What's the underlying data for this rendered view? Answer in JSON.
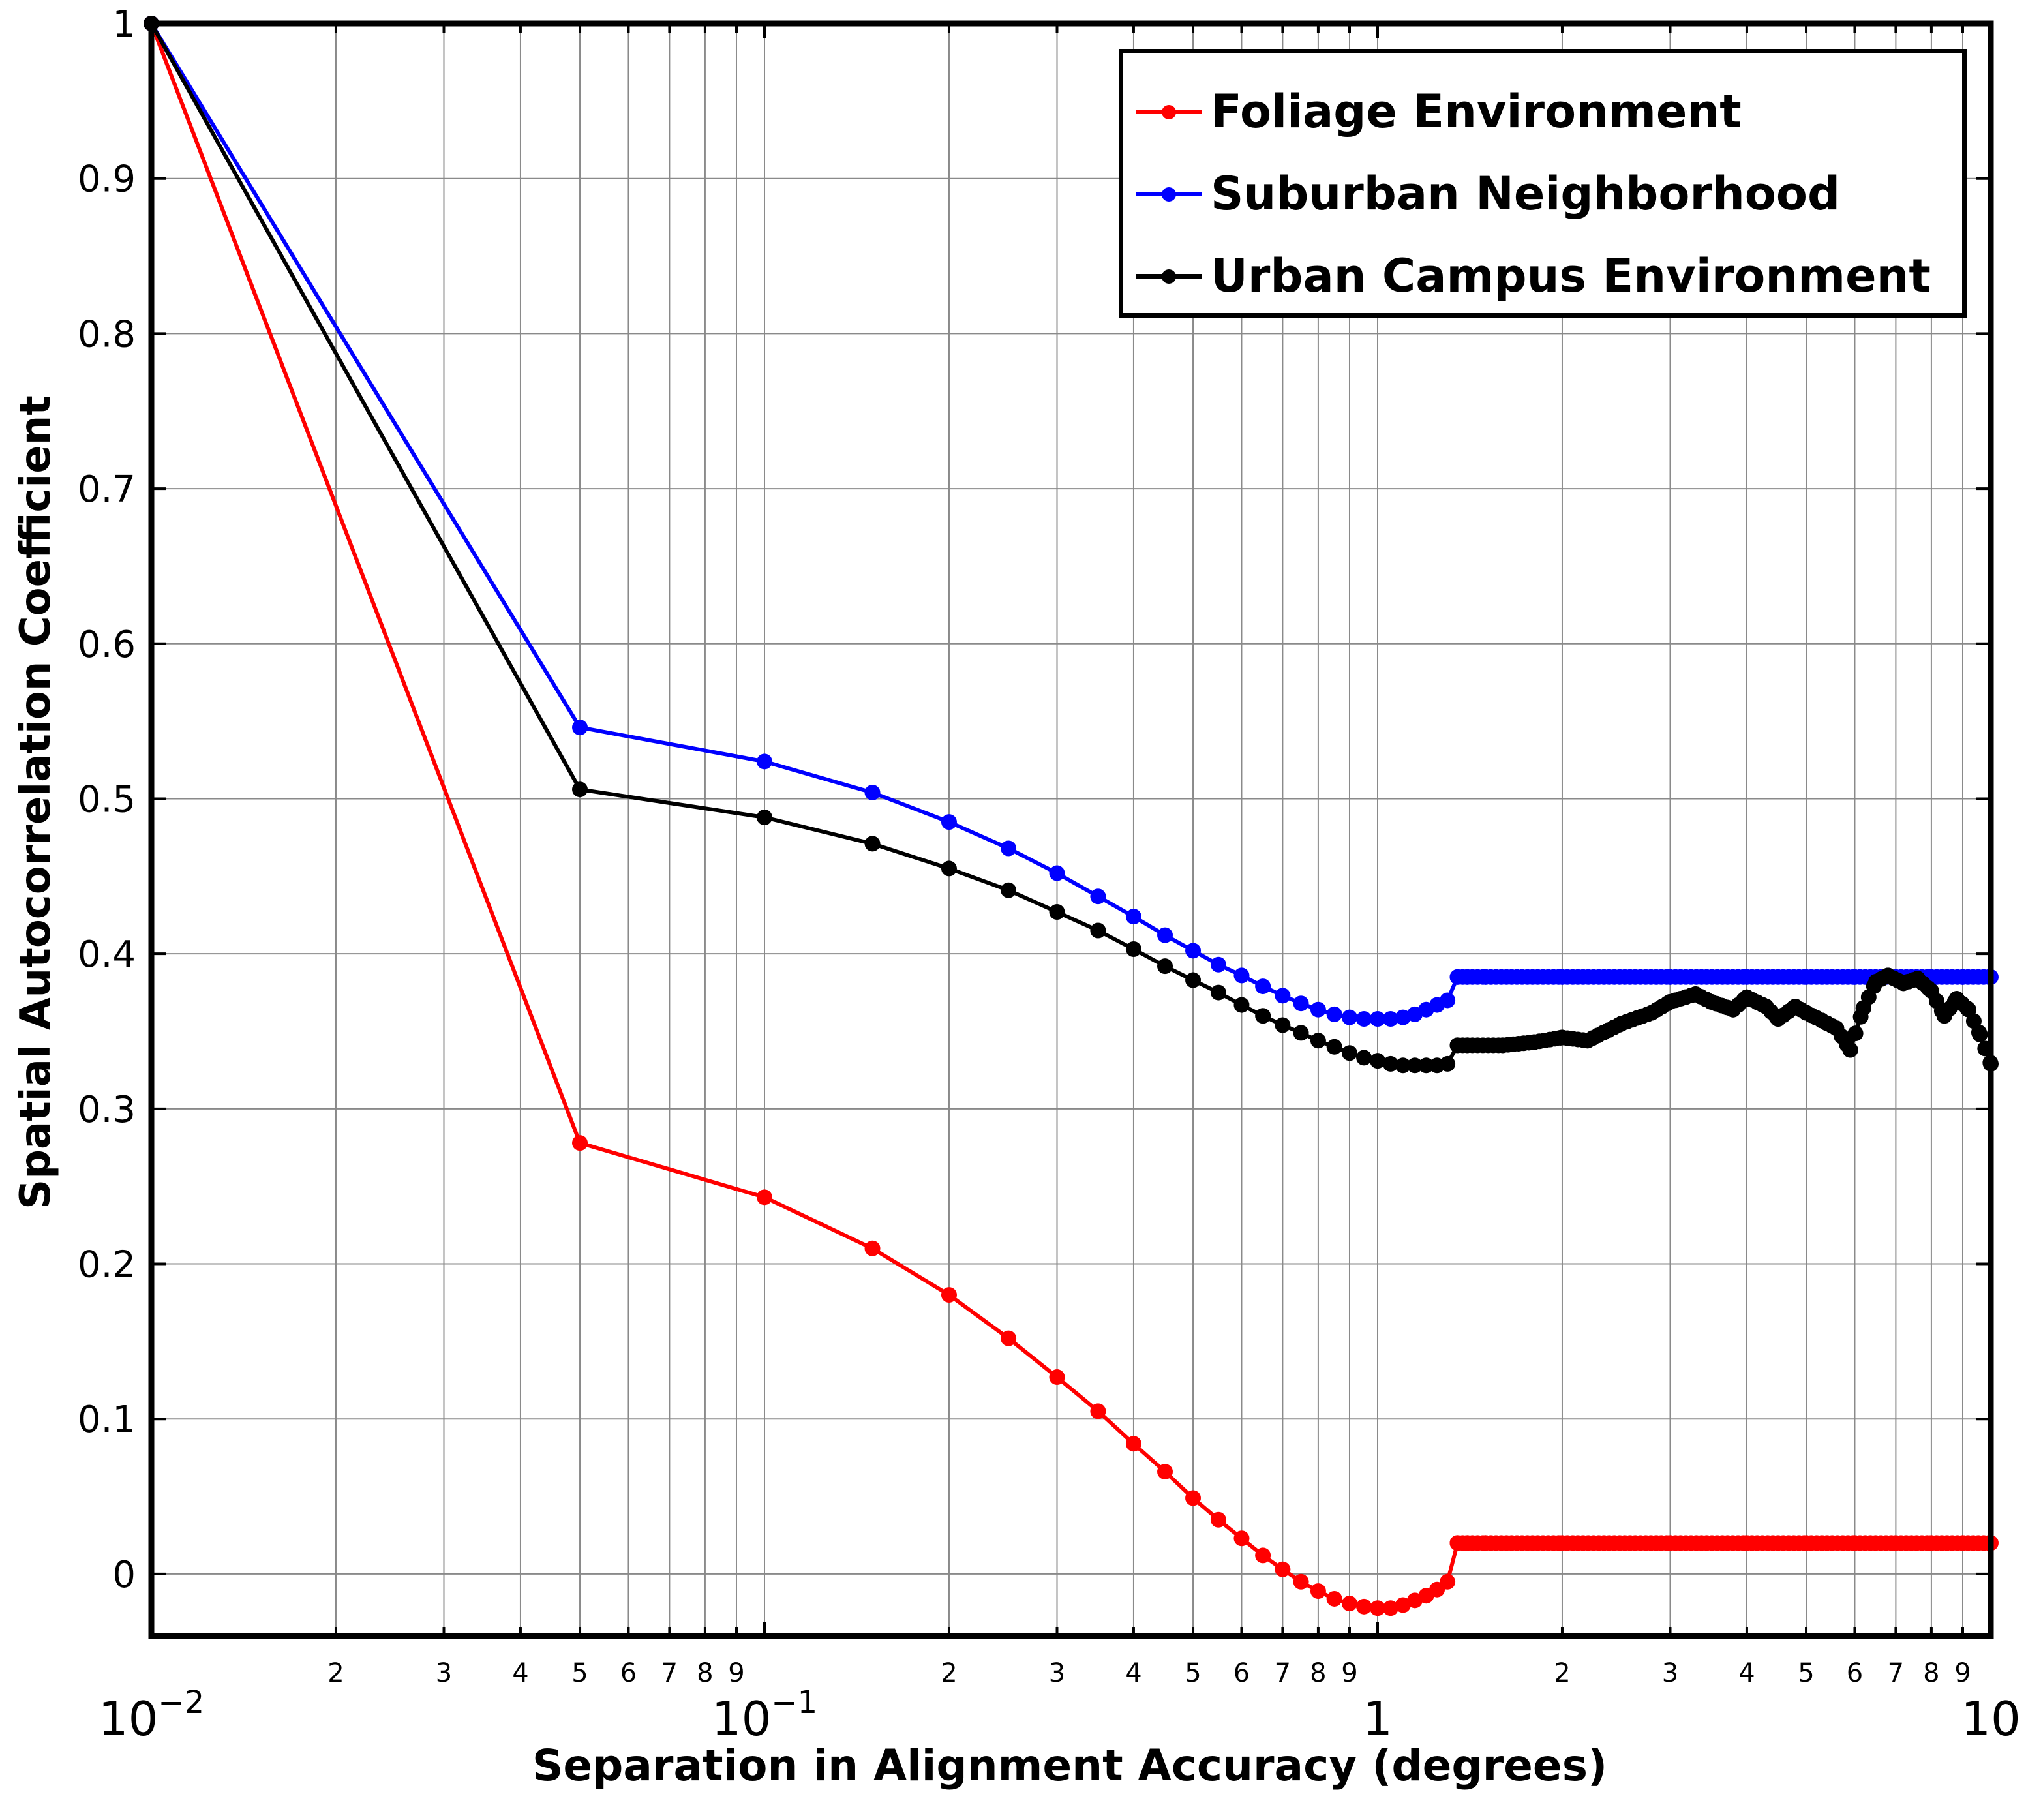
{
  "chart_data": {
    "type": "line",
    "xlabel": "Separation in Alignment Accuracy (degrees)",
    "ylabel": "Spatial Autocorrelation Coefficient",
    "x_scale": "log",
    "xlim": [
      0.01,
      10
    ],
    "ylim": [
      -0.04,
      1
    ],
    "yticks": [
      0,
      0.1,
      0.2,
      0.3,
      0.4,
      0.5,
      0.6,
      0.7,
      0.8,
      0.9,
      1
    ],
    "ytick_labels": [
      "0",
      "0.1",
      "0.2",
      "0.3",
      "0.4",
      "0.5",
      "0.6",
      "0.7",
      "0.8",
      "0.9",
      "1"
    ],
    "xtick_major_labels": [
      {
        "value": 0.01,
        "base": "10",
        "exp": "−2"
      },
      {
        "value": 0.1,
        "base": "10",
        "exp": "−1"
      },
      {
        "value": 1,
        "base": "1",
        "exp": ""
      },
      {
        "value": 10,
        "base": "10",
        "exp": ""
      }
    ],
    "xtick_minor_labels": [
      "2",
      "3",
      "4",
      "5",
      "6",
      "7",
      "8",
      "9"
    ],
    "grid": true,
    "legend_position": "top-right",
    "series": [
      {
        "name": "Foliage Environment",
        "color": "#ff0000",
        "x": [
          0.01,
          0.05,
          0.1,
          0.15,
          0.2,
          0.25,
          0.3,
          0.35,
          0.4,
          0.45,
          0.5,
          0.55,
          0.6,
          0.65,
          0.7,
          0.75,
          0.8,
          0.85,
          0.9,
          0.95,
          1.0,
          1.05,
          1.1,
          1.15,
          1.2,
          1.25,
          1.3,
          1.35,
          1.4,
          1.5,
          2,
          3,
          4,
          5,
          6,
          7,
          8,
          9,
          10
        ],
        "y": [
          1.0,
          0.278,
          0.243,
          0.21,
          0.18,
          0.152,
          0.127,
          0.105,
          0.084,
          0.066,
          0.049,
          0.035,
          0.023,
          0.012,
          0.003,
          -0.005,
          -0.011,
          -0.016,
          -0.019,
          -0.021,
          -0.022,
          -0.022,
          -0.02,
          -0.017,
          -0.014,
          -0.01,
          -0.005,
          0.02,
          0.02,
          0.02,
          0.02,
          0.02,
          0.02,
          0.02,
          0.02,
          0.02,
          0.02,
          0.02,
          0.02
        ]
      },
      {
        "name": "Suburban Neighborhood",
        "color": "#0000ff",
        "x": [
          0.01,
          0.05,
          0.1,
          0.15,
          0.2,
          0.25,
          0.3,
          0.35,
          0.4,
          0.45,
          0.5,
          0.55,
          0.6,
          0.65,
          0.7,
          0.75,
          0.8,
          0.85,
          0.9,
          0.95,
          1.0,
          1.05,
          1.1,
          1.15,
          1.2,
          1.25,
          1.3,
          1.35,
          1.4,
          1.5,
          2,
          3,
          4,
          5,
          6,
          7,
          8,
          9,
          10
        ],
        "y": [
          1.0,
          0.546,
          0.524,
          0.504,
          0.485,
          0.468,
          0.452,
          0.437,
          0.424,
          0.412,
          0.402,
          0.393,
          0.386,
          0.379,
          0.373,
          0.368,
          0.364,
          0.361,
          0.359,
          0.358,
          0.358,
          0.358,
          0.359,
          0.361,
          0.364,
          0.367,
          0.37,
          0.385,
          0.385,
          0.385,
          0.385,
          0.385,
          0.385,
          0.385,
          0.385,
          0.385,
          0.385,
          0.385,
          0.385
        ]
      },
      {
        "name": "Urban Campus Environment",
        "color": "#000000",
        "x": [
          0.01,
          0.05,
          0.1,
          0.15,
          0.2,
          0.25,
          0.3,
          0.35,
          0.4,
          0.45,
          0.5,
          0.55,
          0.6,
          0.65,
          0.7,
          0.75,
          0.8,
          0.85,
          0.9,
          0.95,
          1.0,
          1.05,
          1.1,
          1.15,
          1.2,
          1.25,
          1.3,
          1.35,
          1.4,
          1.6,
          1.8,
          2.0,
          2.2,
          2.5,
          2.8,
          3.0,
          3.3,
          3.5,
          3.8,
          4.0,
          4.3,
          4.5,
          4.8,
          5.0,
          5.3,
          5.6,
          5.9,
          6.2,
          6.5,
          6.8,
          7.2,
          7.6,
          8.0,
          8.4,
          8.8,
          9.2,
          9.6,
          10
        ],
        "y": [
          1.0,
          0.506,
          0.488,
          0.471,
          0.455,
          0.441,
          0.427,
          0.415,
          0.403,
          0.392,
          0.383,
          0.375,
          0.367,
          0.36,
          0.354,
          0.349,
          0.344,
          0.34,
          0.336,
          0.333,
          0.331,
          0.329,
          0.328,
          0.328,
          0.328,
          0.328,
          0.329,
          0.341,
          0.341,
          0.341,
          0.343,
          0.346,
          0.344,
          0.355,
          0.362,
          0.369,
          0.374,
          0.369,
          0.364,
          0.372,
          0.366,
          0.358,
          0.366,
          0.362,
          0.357,
          0.352,
          0.338,
          0.365,
          0.382,
          0.386,
          0.381,
          0.384,
          0.376,
          0.36,
          0.371,
          0.364,
          0.348,
          0.329
        ]
      }
    ]
  }
}
